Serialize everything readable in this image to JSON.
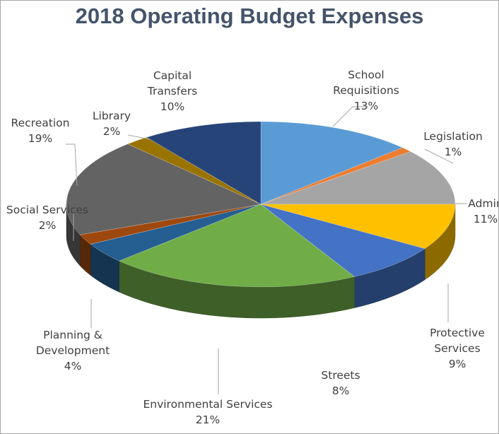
{
  "chart_data": {
    "type": "pie",
    "title": "2018 Operating Budget Expenses",
    "categories": [
      "School Requisitions",
      "Legislation",
      "Administration",
      "Protective Services",
      "Streets",
      "Environmental Services",
      "Planning & Development",
      "Social Services",
      "Recreation",
      "Library",
      "Capital Transfers"
    ],
    "values": [
      13,
      1,
      11,
      9,
      8,
      21,
      4,
      2,
      19,
      2,
      10
    ],
    "value_labels": [
      "13%",
      "1%",
      "11%",
      "9%",
      "8%",
      "21%",
      "4%",
      "2%",
      "19%",
      "2%",
      "10%"
    ],
    "label_lines": [
      [
        "School",
        "Requisitions",
        "13%"
      ],
      [
        "Legislation",
        "1%"
      ],
      [
        "Admin",
        "11%"
      ],
      [
        "Protective",
        "Services",
        "9%"
      ],
      [
        "Streets",
        "8%"
      ],
      [
        "Environmental Services",
        "21%"
      ],
      [
        "Planning &",
        "Development",
        "4%"
      ],
      [
        "Social Services",
        "2%"
      ],
      [
        "Recreation",
        "19%"
      ],
      [
        "Library",
        "2%"
      ],
      [
        "Capital",
        "Transfers",
        "10%"
      ]
    ],
    "colors": [
      "#5b9bd5",
      "#ed7d31",
      "#a5a5a5",
      "#ffc000",
      "#4472c4",
      "#70ad47",
      "#255e91",
      "#9e480e",
      "#636363",
      "#997300",
      "#264478"
    ],
    "style": "3d-exploded-none",
    "legend": "none"
  }
}
